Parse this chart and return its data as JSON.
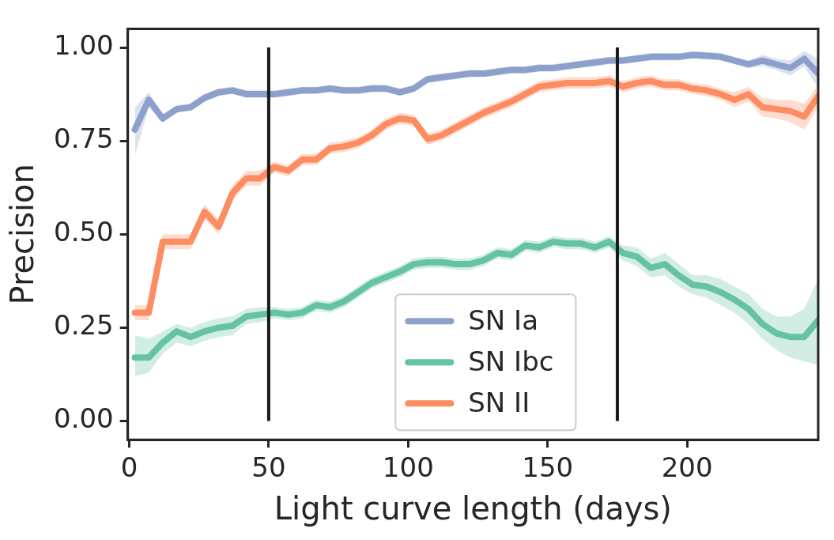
{
  "chart_data": {
    "type": "line",
    "xlabel": "Light curve length (days)",
    "ylabel": "Precision",
    "x": [
      2,
      7,
      12,
      17,
      22,
      27,
      32,
      37,
      42,
      47,
      52,
      57,
      62,
      67,
      72,
      77,
      82,
      87,
      92,
      97,
      102,
      107,
      112,
      117,
      122,
      127,
      132,
      137,
      142,
      147,
      152,
      157,
      162,
      167,
      172,
      177,
      182,
      187,
      192,
      197,
      202,
      207,
      212,
      217,
      222,
      227,
      232,
      237,
      242,
      247
    ],
    "xlim": [
      -0.5,
      247
    ],
    "xticks": [
      0,
      50,
      100,
      150,
      200
    ],
    "ylim": [
      -0.05,
      1.05
    ],
    "yticks": [
      {
        "value": 0,
        "label": "0.00"
      },
      {
        "value": 0.25,
        "label": "0.25"
      },
      {
        "value": 0.5,
        "label": "0.50"
      },
      {
        "value": 0.75,
        "label": "0.75"
      },
      {
        "value": 1,
        "label": "1.00"
      }
    ],
    "grid": false,
    "legend": "bottom",
    "line_style": "solid",
    "marker": "none",
    "ref_lines": [
      {
        "axis": "x",
        "value": 50,
        "color": "#1a1a1a"
      },
      {
        "axis": "x",
        "value": 175,
        "color": "#1a1a1a"
      }
    ],
    "series": [
      {
        "name": "SN Ia",
        "color": "#8da0cb",
        "values": [
          0.78,
          0.86,
          0.81,
          0.835,
          0.84,
          0.865,
          0.88,
          0.885,
          0.875,
          0.875,
          0.875,
          0.88,
          0.885,
          0.885,
          0.89,
          0.885,
          0.885,
          0.89,
          0.89,
          0.88,
          0.89,
          0.915,
          0.92,
          0.925,
          0.93,
          0.93,
          0.935,
          0.94,
          0.94,
          0.945,
          0.945,
          0.95,
          0.955,
          0.96,
          0.965,
          0.965,
          0.97,
          0.975,
          0.975,
          0.975,
          0.98,
          0.978,
          0.975,
          0.965,
          0.955,
          0.965,
          0.955,
          0.945,
          0.97,
          0.93
        ],
        "lower": [
          0.71,
          0.84,
          0.8,
          0.825,
          0.83,
          0.855,
          0.87,
          0.875,
          0.865,
          0.865,
          0.865,
          0.87,
          0.875,
          0.875,
          0.88,
          0.875,
          0.875,
          0.88,
          0.88,
          0.87,
          0.88,
          0.905,
          0.91,
          0.915,
          0.92,
          0.92,
          0.925,
          0.93,
          0.93,
          0.935,
          0.935,
          0.94,
          0.945,
          0.95,
          0.955,
          0.955,
          0.96,
          0.965,
          0.965,
          0.965,
          0.97,
          0.968,
          0.965,
          0.955,
          0.945,
          0.95,
          0.94,
          0.925,
          0.95,
          0.89
        ],
        "upper": [
          0.84,
          0.88,
          0.82,
          0.845,
          0.85,
          0.875,
          0.89,
          0.895,
          0.885,
          0.885,
          0.885,
          0.89,
          0.895,
          0.895,
          0.9,
          0.895,
          0.895,
          0.9,
          0.9,
          0.89,
          0.9,
          0.925,
          0.93,
          0.935,
          0.94,
          0.94,
          0.945,
          0.95,
          0.95,
          0.955,
          0.955,
          0.96,
          0.965,
          0.97,
          0.975,
          0.975,
          0.98,
          0.985,
          0.985,
          0.985,
          0.99,
          0.988,
          0.985,
          0.975,
          0.965,
          0.98,
          0.97,
          0.965,
          0.99,
          0.97
        ]
      },
      {
        "name": "SN Ibc",
        "color": "#66c2a5",
        "values": [
          0.17,
          0.17,
          0.21,
          0.24,
          0.225,
          0.24,
          0.25,
          0.255,
          0.28,
          0.285,
          0.29,
          0.285,
          0.29,
          0.31,
          0.305,
          0.32,
          0.345,
          0.37,
          0.385,
          0.4,
          0.42,
          0.425,
          0.425,
          0.42,
          0.42,
          0.43,
          0.45,
          0.445,
          0.47,
          0.465,
          0.48,
          0.475,
          0.475,
          0.465,
          0.48,
          0.45,
          0.44,
          0.41,
          0.42,
          0.39,
          0.365,
          0.36,
          0.345,
          0.325,
          0.3,
          0.26,
          0.235,
          0.225,
          0.225,
          0.27
        ],
        "lower": [
          0.12,
          0.13,
          0.18,
          0.21,
          0.2,
          0.215,
          0.225,
          0.23,
          0.26,
          0.265,
          0.275,
          0.27,
          0.275,
          0.295,
          0.29,
          0.305,
          0.33,
          0.355,
          0.37,
          0.385,
          0.405,
          0.41,
          0.41,
          0.405,
          0.405,
          0.415,
          0.435,
          0.43,
          0.455,
          0.45,
          0.465,
          0.46,
          0.46,
          0.45,
          0.465,
          0.43,
          0.415,
          0.385,
          0.39,
          0.36,
          0.34,
          0.33,
          0.31,
          0.29,
          0.26,
          0.22,
          0.19,
          0.17,
          0.16,
          0.15
        ],
        "upper": [
          0.23,
          0.22,
          0.24,
          0.26,
          0.25,
          0.265,
          0.275,
          0.28,
          0.3,
          0.305,
          0.305,
          0.3,
          0.305,
          0.325,
          0.32,
          0.335,
          0.36,
          0.385,
          0.4,
          0.415,
          0.435,
          0.44,
          0.44,
          0.435,
          0.435,
          0.445,
          0.465,
          0.46,
          0.485,
          0.48,
          0.495,
          0.49,
          0.49,
          0.48,
          0.495,
          0.47,
          0.465,
          0.435,
          0.45,
          0.42,
          0.39,
          0.39,
          0.38,
          0.36,
          0.34,
          0.3,
          0.28,
          0.28,
          0.3,
          0.38
        ]
      },
      {
        "name": "SN II",
        "color": "#fc8d62",
        "values": [
          0.29,
          0.29,
          0.48,
          0.48,
          0.48,
          0.56,
          0.52,
          0.61,
          0.65,
          0.65,
          0.68,
          0.67,
          0.7,
          0.7,
          0.73,
          0.735,
          0.745,
          0.765,
          0.795,
          0.81,
          0.805,
          0.755,
          0.765,
          0.785,
          0.805,
          0.825,
          0.84,
          0.855,
          0.875,
          0.895,
          0.9,
          0.905,
          0.905,
          0.905,
          0.91,
          0.895,
          0.905,
          0.91,
          0.9,
          0.9,
          0.89,
          0.885,
          0.875,
          0.86,
          0.875,
          0.84,
          0.835,
          0.83,
          0.815,
          0.87
        ],
        "lower": [
          0.27,
          0.27,
          0.46,
          0.46,
          0.46,
          0.54,
          0.5,
          0.59,
          0.63,
          0.63,
          0.665,
          0.655,
          0.685,
          0.685,
          0.715,
          0.72,
          0.73,
          0.75,
          0.78,
          0.795,
          0.79,
          0.74,
          0.75,
          0.77,
          0.79,
          0.81,
          0.825,
          0.84,
          0.86,
          0.88,
          0.885,
          0.89,
          0.89,
          0.89,
          0.895,
          0.88,
          0.89,
          0.895,
          0.885,
          0.885,
          0.875,
          0.87,
          0.86,
          0.84,
          0.855,
          0.815,
          0.81,
          0.8,
          0.78,
          0.84
        ],
        "upper": [
          0.31,
          0.31,
          0.5,
          0.5,
          0.5,
          0.58,
          0.54,
          0.63,
          0.67,
          0.67,
          0.695,
          0.685,
          0.715,
          0.715,
          0.745,
          0.75,
          0.76,
          0.78,
          0.81,
          0.825,
          0.82,
          0.77,
          0.78,
          0.8,
          0.82,
          0.84,
          0.855,
          0.87,
          0.89,
          0.91,
          0.915,
          0.92,
          0.92,
          0.92,
          0.925,
          0.91,
          0.92,
          0.925,
          0.915,
          0.915,
          0.905,
          0.9,
          0.89,
          0.88,
          0.895,
          0.865,
          0.86,
          0.86,
          0.85,
          0.9
        ]
      }
    ]
  }
}
